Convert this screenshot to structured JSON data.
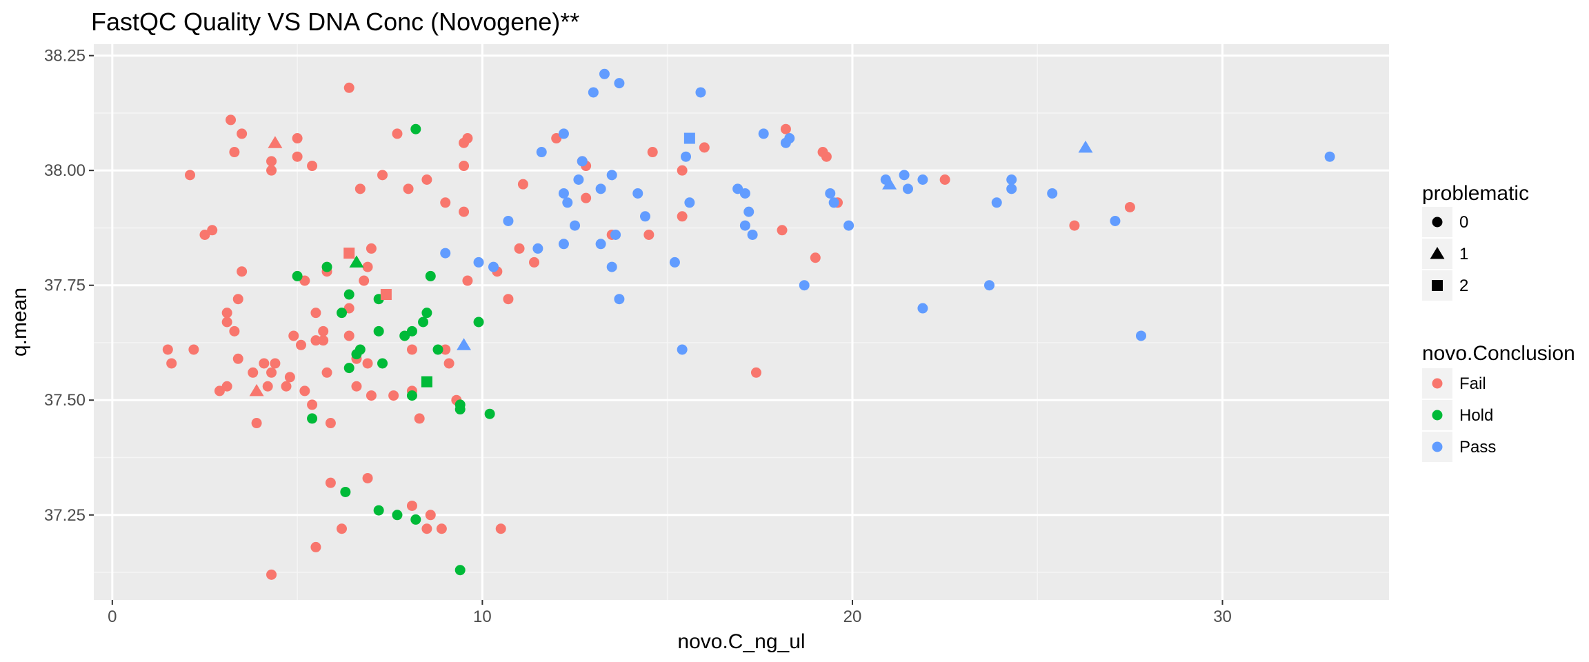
{
  "chart_data": {
    "type": "scatter",
    "title": "FastQC Quality VS DNA Conc (Novogene)**",
    "xlabel": "novo.C_ng_ul",
    "ylabel": "q.mean",
    "xlim": [
      -0.5,
      34.5
    ],
    "ylim": [
      37.065,
      38.275
    ],
    "x_ticks": [
      0,
      10,
      20,
      30
    ],
    "x_tick_labels": [
      "0",
      "10",
      "20",
      "30"
    ],
    "y_ticks": [
      37.25,
      37.5,
      37.75,
      38.0,
      38.25
    ],
    "y_tick_labels": [
      "37.25",
      "37.50",
      "37.75",
      "38.00",
      "38.25"
    ],
    "grid": true,
    "legend_position": "right",
    "legends": [
      {
        "title": "problematic",
        "encodes": "shape",
        "entries": [
          {
            "label": "0",
            "shape": "circle"
          },
          {
            "label": "1",
            "shape": "triangle"
          },
          {
            "label": "2",
            "shape": "square"
          }
        ]
      },
      {
        "title": "novo.Conclusion",
        "encodes": "color",
        "entries": [
          {
            "label": "Fail",
            "color": "#F8766D"
          },
          {
            "label": "Hold",
            "color": "#00BA38"
          },
          {
            "label": "Pass",
            "color": "#619CFF"
          }
        ]
      }
    ],
    "series": [
      {
        "name": "Fail",
        "color": "#F8766D",
        "points": [
          [
            6.4,
            38.18
          ],
          [
            3.2,
            38.11
          ],
          [
            3.5,
            38.08
          ],
          [
            5.0,
            38.07
          ],
          [
            9.6,
            38.07
          ],
          [
            7.7,
            38.08
          ],
          [
            3.3,
            38.04
          ],
          [
            4.3,
            38.02
          ],
          [
            5.0,
            38.03
          ],
          [
            5.4,
            38.01
          ],
          [
            9.5,
            38.06
          ],
          [
            9.5,
            38.01
          ],
          [
            4.3,
            38.0
          ],
          [
            2.1,
            37.99
          ],
          [
            7.3,
            37.99
          ],
          [
            6.7,
            37.96
          ],
          [
            8.0,
            37.96
          ],
          [
            8.5,
            37.98
          ],
          [
            9.0,
            37.93
          ],
          [
            9.5,
            37.91
          ],
          [
            2.7,
            37.87
          ],
          [
            2.5,
            37.86
          ],
          [
            7.0,
            37.83
          ],
          [
            3.5,
            37.78
          ],
          [
            5.8,
            37.78
          ],
          [
            6.9,
            37.79
          ],
          [
            6.8,
            37.76
          ],
          [
            5.2,
            37.76
          ],
          [
            9.6,
            37.76
          ],
          [
            3.1,
            37.69
          ],
          [
            3.4,
            37.72
          ],
          [
            3.1,
            37.67
          ],
          [
            5.5,
            37.69
          ],
          [
            6.4,
            37.7
          ],
          [
            3.3,
            37.65
          ],
          [
            4.9,
            37.64
          ],
          [
            5.5,
            37.63
          ],
          [
            5.7,
            37.63
          ],
          [
            5.7,
            37.65
          ],
          [
            6.4,
            37.64
          ],
          [
            5.1,
            37.62
          ],
          [
            1.5,
            37.61
          ],
          [
            2.2,
            37.61
          ],
          [
            1.6,
            37.58
          ],
          [
            3.4,
            37.59
          ],
          [
            4.1,
            37.58
          ],
          [
            4.3,
            37.56
          ],
          [
            4.4,
            37.58
          ],
          [
            3.8,
            37.56
          ],
          [
            5.8,
            37.56
          ],
          [
            6.6,
            37.59
          ],
          [
            6.9,
            37.58
          ],
          [
            8.1,
            37.61
          ],
          [
            9.0,
            37.61
          ],
          [
            9.1,
            37.58
          ],
          [
            4.8,
            37.55
          ],
          [
            3.1,
            37.53
          ],
          [
            2.9,
            37.52
          ],
          [
            4.2,
            37.53
          ],
          [
            4.7,
            37.53
          ],
          [
            5.2,
            37.52
          ],
          [
            6.6,
            37.53
          ],
          [
            7.0,
            37.51
          ],
          [
            7.6,
            37.51
          ],
          [
            8.1,
            37.52
          ],
          [
            9.3,
            37.5
          ],
          [
            5.4,
            37.49
          ],
          [
            3.9,
            37.45
          ],
          [
            5.9,
            37.45
          ],
          [
            8.3,
            37.46
          ],
          [
            6.9,
            37.33
          ],
          [
            5.9,
            37.32
          ],
          [
            8.1,
            37.27
          ],
          [
            8.6,
            37.25
          ],
          [
            6.2,
            37.22
          ],
          [
            8.5,
            37.22
          ],
          [
            8.9,
            37.22
          ],
          [
            10.5,
            37.22
          ],
          [
            5.5,
            37.18
          ],
          [
            4.3,
            37.12
          ],
          [
            12.0,
            38.07
          ],
          [
            12.7,
            38.02
          ],
          [
            12.8,
            38.01
          ],
          [
            12.8,
            37.94
          ],
          [
            14.6,
            38.04
          ],
          [
            16.0,
            38.05
          ],
          [
            18.2,
            38.09
          ],
          [
            19.2,
            38.04
          ],
          [
            19.3,
            38.03
          ],
          [
            19.6,
            37.93
          ],
          [
            11.1,
            37.97
          ],
          [
            15.4,
            38.0
          ],
          [
            15.4,
            37.9
          ],
          [
            13.5,
            37.86
          ],
          [
            14.5,
            37.86
          ],
          [
            11.0,
            37.83
          ],
          [
            11.4,
            37.8
          ],
          [
            10.4,
            37.78
          ],
          [
            10.7,
            37.72
          ],
          [
            18.1,
            37.87
          ],
          [
            19.0,
            37.81
          ],
          [
            17.4,
            37.56
          ],
          [
            22.5,
            37.98
          ],
          [
            26.0,
            37.88
          ],
          [
            27.5,
            37.92
          ]
        ]
      },
      {
        "name": "Hold",
        "color": "#00BA38",
        "points": [
          [
            8.2,
            38.09
          ],
          [
            5.0,
            37.77
          ],
          [
            5.8,
            37.79
          ],
          [
            8.6,
            37.77
          ],
          [
            6.4,
            37.73
          ],
          [
            7.2,
            37.72
          ],
          [
            6.2,
            37.69
          ],
          [
            8.5,
            37.69
          ],
          [
            8.4,
            37.67
          ],
          [
            9.9,
            37.67
          ],
          [
            7.2,
            37.65
          ],
          [
            7.9,
            37.64
          ],
          [
            8.1,
            37.65
          ],
          [
            6.7,
            37.61
          ],
          [
            8.8,
            37.61
          ],
          [
            6.6,
            37.6
          ],
          [
            7.3,
            37.58
          ],
          [
            6.4,
            37.57
          ],
          [
            8.1,
            37.51
          ],
          [
            9.4,
            37.49
          ],
          [
            9.4,
            37.48
          ],
          [
            5.4,
            37.46
          ],
          [
            10.2,
            37.47
          ],
          [
            6.3,
            37.3
          ],
          [
            7.2,
            37.26
          ],
          [
            7.7,
            37.25
          ],
          [
            8.2,
            37.24
          ],
          [
            9.4,
            37.13
          ]
        ]
      },
      {
        "name": "Pass",
        "color": "#619CFF",
        "points": [
          [
            13.3,
            38.21
          ],
          [
            13.7,
            38.19
          ],
          [
            13.0,
            38.17
          ],
          [
            15.9,
            38.17
          ],
          [
            12.2,
            38.08
          ],
          [
            17.6,
            38.08
          ],
          [
            18.3,
            38.07
          ],
          [
            18.2,
            38.06
          ],
          [
            11.6,
            38.04
          ],
          [
            15.5,
            38.03
          ],
          [
            32.9,
            38.03
          ],
          [
            12.7,
            38.02
          ],
          [
            13.5,
            37.99
          ],
          [
            16.9,
            37.96
          ],
          [
            12.6,
            37.98
          ],
          [
            12.2,
            37.95
          ],
          [
            13.2,
            37.96
          ],
          [
            14.2,
            37.95
          ],
          [
            17.1,
            37.95
          ],
          [
            15.6,
            37.93
          ],
          [
            12.3,
            37.93
          ],
          [
            17.2,
            37.91
          ],
          [
            14.4,
            37.9
          ],
          [
            20.9,
            37.98
          ],
          [
            21.4,
            37.99
          ],
          [
            21.5,
            37.96
          ],
          [
            21.9,
            37.98
          ],
          [
            24.3,
            37.98
          ],
          [
            24.3,
            37.96
          ],
          [
            25.4,
            37.95
          ],
          [
            19.4,
            37.95
          ],
          [
            19.5,
            37.93
          ],
          [
            23.9,
            37.93
          ],
          [
            10.7,
            37.89
          ],
          [
            12.5,
            37.88
          ],
          [
            17.1,
            37.88
          ],
          [
            17.3,
            37.86
          ],
          [
            13.6,
            37.86
          ],
          [
            19.9,
            37.88
          ],
          [
            27.1,
            37.89
          ],
          [
            11.5,
            37.83
          ],
          [
            12.2,
            37.84
          ],
          [
            13.2,
            37.84
          ],
          [
            9.0,
            37.82
          ],
          [
            9.9,
            37.8
          ],
          [
            10.3,
            37.79
          ],
          [
            13.5,
            37.79
          ],
          [
            15.2,
            37.8
          ],
          [
            13.7,
            37.72
          ],
          [
            18.7,
            37.75
          ],
          [
            23.7,
            37.75
          ],
          [
            21.9,
            37.7
          ],
          [
            27.8,
            37.64
          ],
          [
            15.4,
            37.61
          ]
        ]
      }
    ],
    "special_markers": [
      {
        "shape": "triangle",
        "series": "Fail",
        "x": 4.4,
        "y": 38.06
      },
      {
        "shape": "triangle",
        "series": "Fail",
        "x": 3.9,
        "y": 37.52
      },
      {
        "shape": "square",
        "series": "Fail",
        "x": 6.4,
        "y": 37.82
      },
      {
        "shape": "square",
        "series": "Fail",
        "x": 7.4,
        "y": 37.73
      },
      {
        "shape": "triangle",
        "series": "Hold",
        "x": 6.6,
        "y": 37.8
      },
      {
        "shape": "square",
        "series": "Hold",
        "x": 8.5,
        "y": 37.54
      },
      {
        "shape": "triangle",
        "series": "Pass",
        "x": 9.5,
        "y": 37.62
      },
      {
        "shape": "square",
        "series": "Pass",
        "x": 15.6,
        "y": 38.07
      },
      {
        "shape": "triangle",
        "series": "Pass",
        "x": 21.0,
        "y": 37.97
      },
      {
        "shape": "triangle",
        "series": "Pass",
        "x": 26.3,
        "y": 38.05
      }
    ]
  }
}
